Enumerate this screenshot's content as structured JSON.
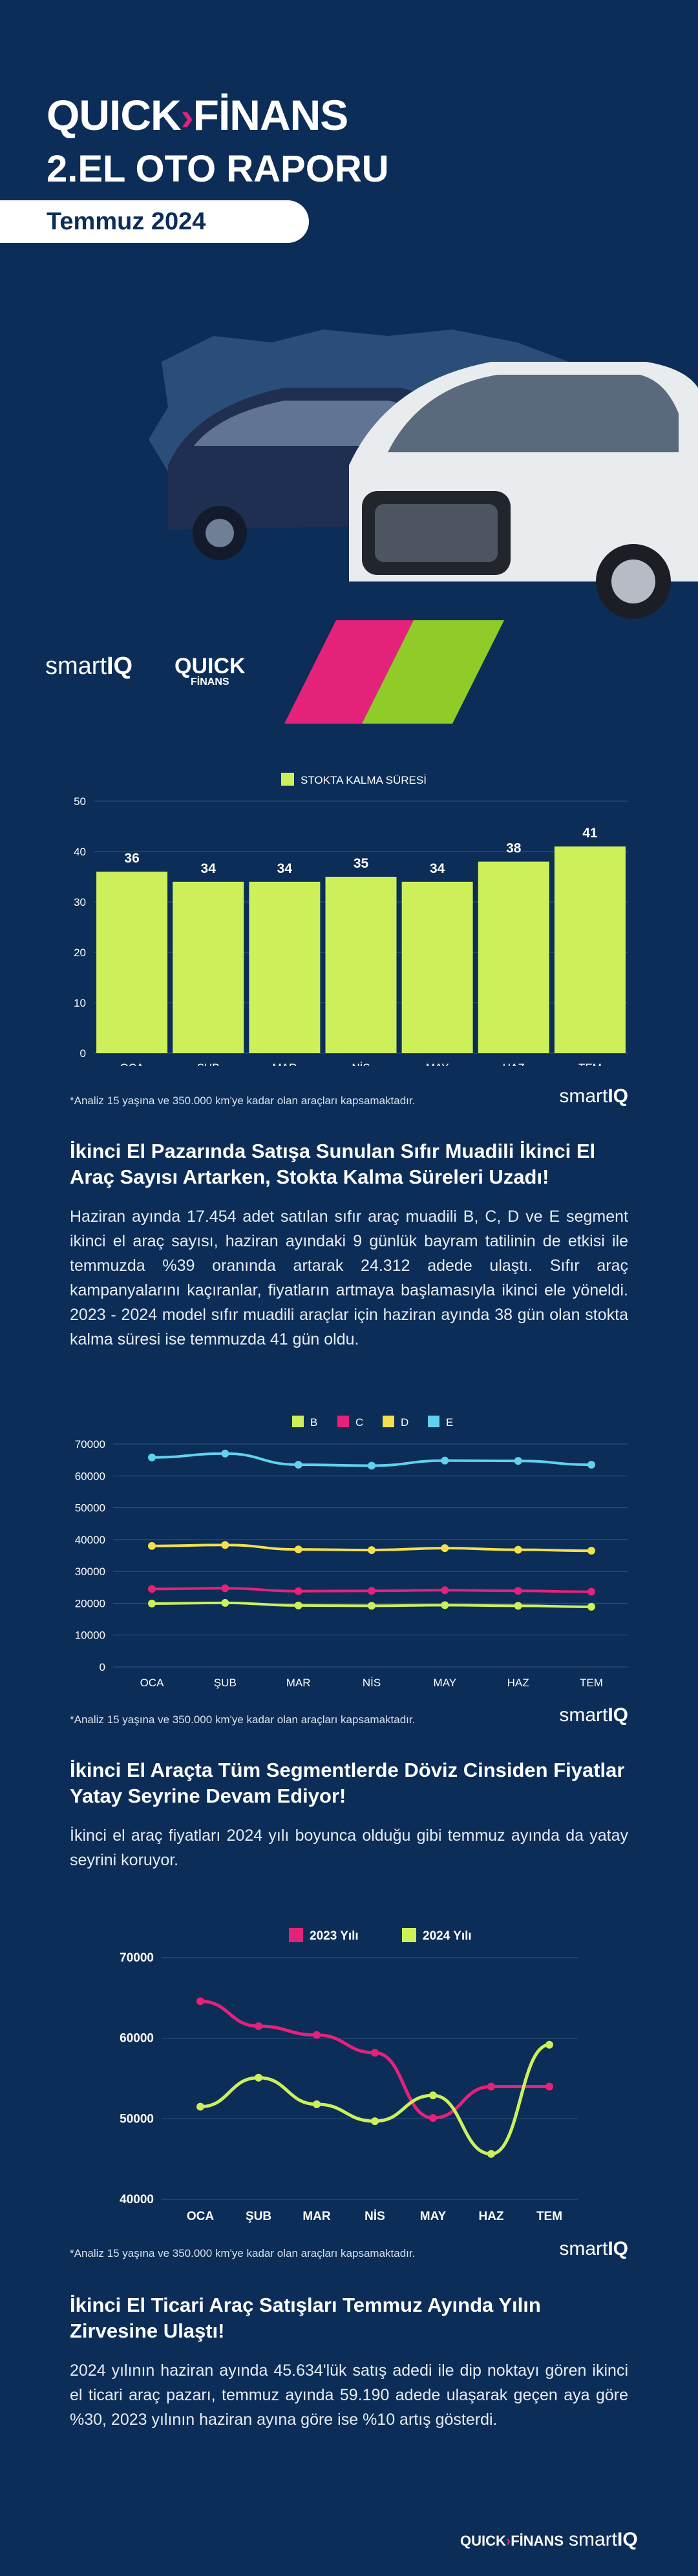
{
  "hero": {
    "logo_quick": "QUICK",
    "logo_finans": "FİNANS",
    "title": "2.EL OTO RAPORU",
    "date": "Temmuz 2024",
    "logo_smartiq_a": "smart",
    "logo_smartiq_b": "IQ",
    "mini_quick": "QUICK",
    "mini_finans": "FİNANS"
  },
  "colors": {
    "background": "#0c2d58",
    "bar": "#cdf05a",
    "seg_b": "#cdf05a",
    "seg_c": "#e4227a",
    "seg_d": "#f4e04d",
    "seg_e": "#5fd3ee",
    "y2023": "#e4227a",
    "y2024": "#cdf05a"
  },
  "chart_data": [
    {
      "type": "bar",
      "legend": [
        "STOKTA KALMA SÜRESİ"
      ],
      "legend_position": "top-center",
      "categories": [
        "OCA",
        "ŞUB",
        "MAR",
        "NİS",
        "MAY",
        "HAZ",
        "TEM"
      ],
      "values": [
        36,
        34,
        34,
        35,
        34,
        38,
        41
      ],
      "ylim": [
        0,
        50
      ],
      "yticks": [
        0,
        10,
        20,
        30,
        40,
        50
      ],
      "grid": true
    },
    {
      "type": "line",
      "legend_position": "top-center",
      "categories": [
        "OCA",
        "ŞUB",
        "MAR",
        "NİS",
        "MAY",
        "HAZ",
        "TEM"
      ],
      "series": [
        {
          "name": "B",
          "values": [
            19900,
            20100,
            19300,
            19200,
            19400,
            19200,
            18900
          ]
        },
        {
          "name": "C",
          "values": [
            24500,
            24700,
            23800,
            23900,
            24100,
            23900,
            23600
          ]
        },
        {
          "name": "D",
          "values": [
            38000,
            38300,
            36900,
            36700,
            37300,
            36800,
            36500
          ]
        },
        {
          "name": "E",
          "values": [
            65800,
            67000,
            63500,
            63200,
            64800,
            64700,
            63500
          ]
        }
      ],
      "ylim": [
        0,
        70000
      ],
      "yticks": [
        0,
        10000,
        20000,
        30000,
        40000,
        50000,
        60000,
        70000
      ],
      "grid": true
    },
    {
      "type": "line",
      "smooth": true,
      "legend_position": "top-center",
      "categories": [
        "OCA",
        "ŞUB",
        "MAR",
        "NİS",
        "MAY",
        "HAZ",
        "TEM"
      ],
      "series": [
        {
          "name": "2023 Yılı",
          "values": [
            64600,
            61500,
            60400,
            58200,
            50100,
            54000,
            54000
          ]
        },
        {
          "name": "2024 Yılı",
          "values": [
            51500,
            55100,
            51800,
            49700,
            52900,
            45634,
            59190
          ]
        }
      ],
      "ylim": [
        40000,
        70000
      ],
      "yticks": [
        40000,
        50000,
        60000,
        70000
      ],
      "grid": true
    }
  ],
  "notes": {
    "analysis": "*Analiz 15 yaşına ve 350.000 km'ye kadar olan araçları kapsamaktadır.",
    "chart_logo_a": "smart",
    "chart_logo_b": "IQ"
  },
  "sections": [
    {
      "title": "İkinci El Pazarında Satışa Sunulan Sıfır Muadili İkinci El Araç Sayısı Artarken, Stokta Kalma Süreleri Uzadı!",
      "body": "Haziran ayında 17.454 adet satılan sıfır araç muadili B, C, D ve E segment ikinci el araç sayısı, haziran ayındaki 9 günlük bayram tatilinin de etkisi ile temmuzda %39 oranında artarak 24.312 adede ulaştı. Sıfır araç kampanyalarını kaçıranlar, fiyatların artmaya başlamasıyla ikinci ele yöneldi. 2023 - 2024 model sıfır muadili araçlar için haziran ayında 38 gün olan stokta kalma süresi ise temmuzda 41 gün oldu."
    },
    {
      "title": "İkinci El Araçta Tüm Segmentlerde Döviz Cinsiden Fiyatlar Yatay Seyrine Devam Ediyor!",
      "body": "İkinci el araç fiyatları 2024 yılı boyunca olduğu gibi temmuz ayında da yatay seyrini koruyor."
    },
    {
      "title": "İkinci El Ticari Araç Satışları Temmuz Ayında Yılın Zirvesine Ulaştı!",
      "body": "2024 yılının haziran ayında 45.634'lük satış adedi ile dip noktayı gören ikinci el ticari araç pazarı, temmuz ayında 59.190 adede ulaşarak geçen aya göre %30, 2023 yılının haziran ayına göre ise %10 artış gösterdi."
    }
  ],
  "footer": {
    "quick": "QUICK",
    "finans": "FİNANS",
    "smart_a": "smart",
    "smart_b": "IQ"
  }
}
